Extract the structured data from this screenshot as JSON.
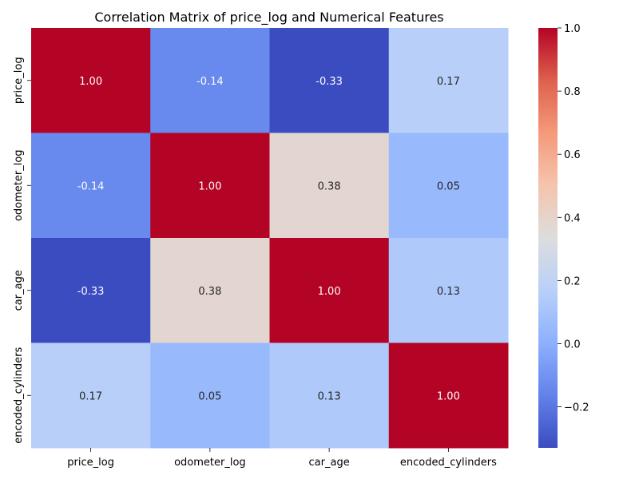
{
  "chart_data": {
    "type": "heatmap",
    "title": "Correlation Matrix of price_log and Numerical Features",
    "xlabel": "",
    "ylabel": "",
    "x_categories": [
      "price_log",
      "odometer_log",
      "car_age",
      "encoded_cylinders"
    ],
    "y_categories": [
      "price_log",
      "odometer_log",
      "car_age",
      "encoded_cylinders"
    ],
    "values": [
      [
        1.0,
        -0.14,
        -0.33,
        0.17
      ],
      [
        -0.14,
        1.0,
        0.38,
        0.05
      ],
      [
        -0.33,
        0.38,
        1.0,
        0.13
      ],
      [
        0.17,
        0.05,
        0.13,
        1.0
      ]
    ],
    "value_labels": [
      [
        "1.00",
        "-0.14",
        "-0.33",
        "0.17"
      ],
      [
        "-0.14",
        "1.00",
        "0.38",
        "0.05"
      ],
      [
        "-0.33",
        "0.38",
        "1.00",
        "0.13"
      ],
      [
        "0.17",
        "0.05",
        "0.13",
        "1.00"
      ]
    ],
    "colormap": "coolwarm",
    "colorbar": {
      "range": [
        -0.33,
        1.0
      ],
      "ticks": [
        -0.2,
        0.0,
        0.2,
        0.4,
        0.6,
        0.8,
        1.0
      ],
      "tick_labels": [
        "−0.2",
        "0.0",
        "0.2",
        "0.4",
        "0.6",
        "0.8",
        "1.0"
      ]
    },
    "grid": false
  }
}
